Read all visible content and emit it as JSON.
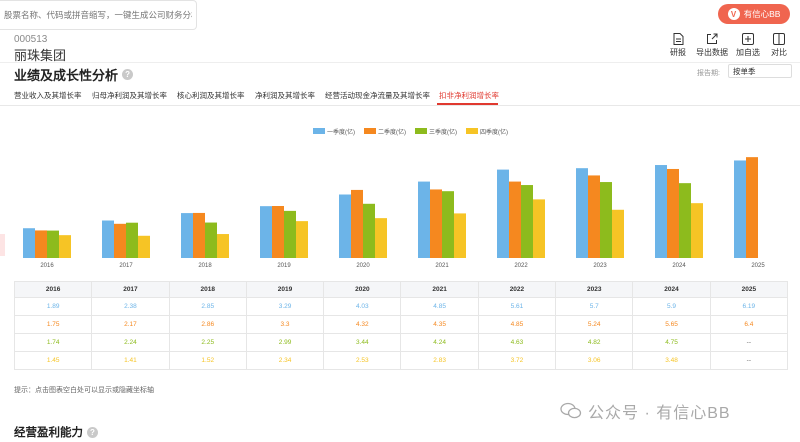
{
  "search": {
    "placeholder": "股票名称、代码或拼音缩写，一键生成公司财务分析报告"
  },
  "vip_button": {
    "label": "有信心BB",
    "icon": "vip-icon"
  },
  "stock": {
    "code": "000513",
    "name": "丽珠集团"
  },
  "toolbar": [
    {
      "label": "研报",
      "icon": "document-icon"
    },
    {
      "label": "导出数据",
      "icon": "export-icon"
    },
    {
      "label": "加自选",
      "icon": "add-square-icon"
    },
    {
      "label": "对比",
      "icon": "compare-icon"
    }
  ],
  "section": {
    "title": "业绩及成长性分析"
  },
  "period": {
    "label": "报告期:",
    "selected": "按单季"
  },
  "tabs": [
    {
      "label": "营业收入及其增长率"
    },
    {
      "label": "归母净利润及其增长率"
    },
    {
      "label": "核心利润及其增长率"
    },
    {
      "label": "净利润及其增长率"
    },
    {
      "label": "经营活动现金净流量及其增长率"
    },
    {
      "label": "扣非净利润增长率",
      "active": true
    }
  ],
  "colors": {
    "q1": "#6cb4e8",
    "q2": "#f5881f",
    "q3": "#8dbb1d",
    "q4": "#f6c425",
    "accent": "#e0392f"
  },
  "chart_data": {
    "type": "bar",
    "categories": [
      "2016",
      "2017",
      "2018",
      "2019",
      "2020",
      "2021",
      "2022",
      "2023",
      "2024",
      "2025"
    ],
    "series": [
      {
        "name": "一季度(亿)",
        "values": [
          1.89,
          2.38,
          2.85,
          3.29,
          4.03,
          4.85,
          5.61,
          5.7,
          5.9,
          6.19
        ]
      },
      {
        "name": "二季度(亿)",
        "values": [
          1.75,
          2.17,
          2.86,
          3.3,
          4.32,
          4.35,
          4.85,
          5.24,
          5.65,
          6.4
        ]
      },
      {
        "name": "三季度(亿)",
        "values": [
          1.74,
          2.24,
          2.25,
          2.99,
          3.44,
          4.24,
          4.63,
          4.82,
          4.75,
          null
        ]
      },
      {
        "name": "四季度(亿)",
        "values": [
          1.45,
          1.41,
          1.52,
          2.34,
          2.53,
          2.83,
          3.72,
          3.06,
          3.48,
          null
        ]
      }
    ],
    "ylim": [
      0,
      6.6
    ],
    "legend": "top-center"
  },
  "table": {
    "missing": "--"
  },
  "hint": "提示：点击图表空白处可以显示或隐藏坐标轴",
  "section2": {
    "title": "经营盈利能力"
  },
  "watermark": "公众号 · 有信心BB"
}
